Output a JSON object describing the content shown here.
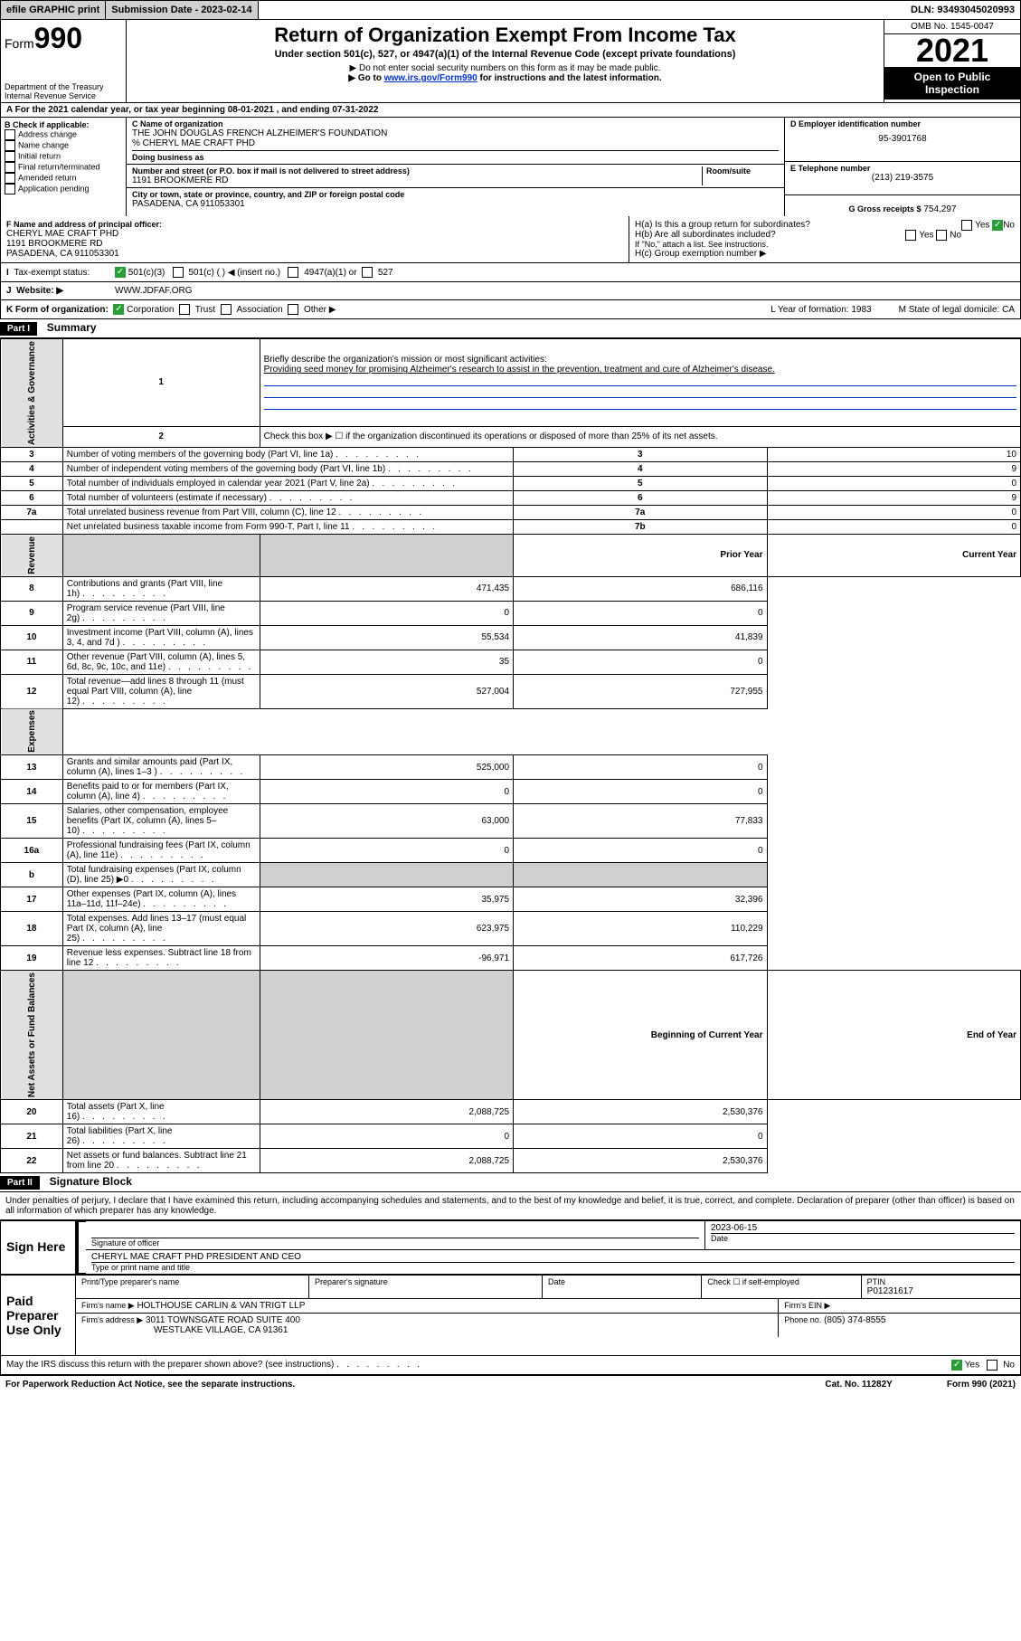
{
  "topbar": {
    "efile": "efile GRAPHIC print",
    "subdate_label": "Submission Date - 2023-02-14",
    "dln": "DLN: 93493045020993"
  },
  "header": {
    "form": "Form",
    "formno": "990",
    "dept": "Department of the Treasury",
    "irs": "Internal Revenue Service",
    "title": "Return of Organization Exempt From Income Tax",
    "subtitle": "Under section 501(c), 527, or 4947(a)(1) of the Internal Revenue Code (except private foundations)",
    "note1": "Do not enter social security numbers on this form as it may be made public.",
    "note2": "Go to ",
    "link": "www.irs.gov/Form990",
    "note2b": " for instructions and the latest information.",
    "omb": "OMB No. 1545-0047",
    "year": "2021",
    "openpub": "Open to Public Inspection"
  },
  "rowA": {
    "text1": "A For the 2021 calendar year, or tax year beginning ",
    "begin": "08-01-2021",
    "text2": " , and ending ",
    "end": "07-31-2022"
  },
  "colB": {
    "label": "B Check if applicable:",
    "items": [
      "Address change",
      "Name change",
      "Initial return",
      "Final return/terminated",
      "Amended return",
      "Application pending"
    ]
  },
  "colC": {
    "nameLabel": "C Name of organization",
    "name1": "THE JOHN DOUGLAS FRENCH ALZHEIMER'S FOUNDATION",
    "name2": "% CHERYL MAE CRAFT PHD",
    "dba": "Doing business as",
    "addrLabel": "Number and street (or P.O. box if mail is not delivered to street address)",
    "roomLabel": "Room/suite",
    "addr": "1191 BROOKMERE RD",
    "cityLabel": "City or town, state or province, country, and ZIP or foreign postal code",
    "city": "PASADENA, CA  911053301"
  },
  "colD": {
    "einLabel": "D Employer identification number",
    "ein": "95-3901768",
    "telLabel": "E Telephone number",
    "tel": "(213) 219-3575",
    "grossLabel": "G Gross receipts $",
    "gross": "754,297"
  },
  "rowF": {
    "flabel": "F Name and address of principal officer:",
    "fname": "CHERYL MAE CRAFT PHD",
    "faddr1": "1191 BROOKMERE RD",
    "faddr2": "PASADENA, CA  911053301",
    "ha": "H(a)  Is this a group return for subordinates?",
    "haYes": "Yes",
    "haNo": "No",
    "hb": "H(b)  Are all subordinates included?",
    "hbNote": "If \"No,\" attach a list. See instructions.",
    "hc": "H(c)  Group exemption number ▶"
  },
  "rowI": {
    "label": "Tax-exempt status:",
    "opts": [
      "501(c)(3)",
      "501(c) (  ) ◀ (insert no.)",
      "4947(a)(1) or",
      "527"
    ]
  },
  "rowJ": {
    "label": "Website: ▶",
    "val": "WWW.JDFAF.ORG"
  },
  "rowK": {
    "label": "K Form of organization:",
    "opts": [
      "Corporation",
      "Trust",
      "Association",
      "Other ▶"
    ],
    "yof": "L Year of formation: 1983",
    "state": "M State of legal domicile: CA"
  },
  "part1": {
    "bar": "Part I",
    "title": "Summary",
    "l1": "Briefly describe the organization's mission or most significant activities:",
    "l1val": "Providing seed money for promising Alzheimer's research to assist in the prevention, treatment and cure of Alzheimer's disease.",
    "l2": "Check this box ▶ ☐ if the organization discontinued its operations or disposed of more than 25% of its net assets.",
    "rows_ag": [
      {
        "n": "3",
        "d": "Number of voting members of the governing body (Part VI, line 1a)",
        "r": "3",
        "v": "10"
      },
      {
        "n": "4",
        "d": "Number of independent voting members of the governing body (Part VI, line 1b)",
        "r": "4",
        "v": "9"
      },
      {
        "n": "5",
        "d": "Total number of individuals employed in calendar year 2021 (Part V, line 2a)",
        "r": "5",
        "v": "0"
      },
      {
        "n": "6",
        "d": "Total number of volunteers (estimate if necessary)",
        "r": "6",
        "v": "9"
      },
      {
        "n": "7a",
        "d": "Total unrelated business revenue from Part VIII, column (C), line 12",
        "r": "7a",
        "v": "0"
      },
      {
        "n": "",
        "d": "Net unrelated business taxable income from Form 990-T, Part I, line 11",
        "r": "7b",
        "v": "0"
      }
    ],
    "hdr_prior": "Prior Year",
    "hdr_curr": "Current Year",
    "rows_rev": [
      {
        "n": "8",
        "d": "Contributions and grants (Part VIII, line 1h)",
        "p": "471,435",
        "c": "686,116"
      },
      {
        "n": "9",
        "d": "Program service revenue (Part VIII, line 2g)",
        "p": "0",
        "c": "0"
      },
      {
        "n": "10",
        "d": "Investment income (Part VIII, column (A), lines 3, 4, and 7d )",
        "p": "55,534",
        "c": "41,839"
      },
      {
        "n": "11",
        "d": "Other revenue (Part VIII, column (A), lines 5, 6d, 8c, 9c, 10c, and 11e)",
        "p": "35",
        "c": "0"
      },
      {
        "n": "12",
        "d": "Total revenue—add lines 8 through 11 (must equal Part VIII, column (A), line 12)",
        "p": "527,004",
        "c": "727,955"
      }
    ],
    "rows_exp": [
      {
        "n": "13",
        "d": "Grants and similar amounts paid (Part IX, column (A), lines 1–3 )",
        "p": "525,000",
        "c": "0"
      },
      {
        "n": "14",
        "d": "Benefits paid to or for members (Part IX, column (A), line 4)",
        "p": "0",
        "c": "0"
      },
      {
        "n": "15",
        "d": "Salaries, other compensation, employee benefits (Part IX, column (A), lines 5–10)",
        "p": "63,000",
        "c": "77,833"
      },
      {
        "n": "16a",
        "d": "Professional fundraising fees (Part IX, column (A), line 11e)",
        "p": "0",
        "c": "0"
      },
      {
        "n": "b",
        "d": "Total fundraising expenses (Part IX, column (D), line 25) ▶0",
        "p": "",
        "c": "",
        "shade": true
      },
      {
        "n": "17",
        "d": "Other expenses (Part IX, column (A), lines 11a–11d, 11f–24e)",
        "p": "35,975",
        "c": "32,396"
      },
      {
        "n": "18",
        "d": "Total expenses. Add lines 13–17 (must equal Part IX, column (A), line 25)",
        "p": "623,975",
        "c": "110,229"
      },
      {
        "n": "19",
        "d": "Revenue less expenses. Subtract line 18 from line 12",
        "p": "-96,971",
        "c": "617,726"
      }
    ],
    "hdr_beg": "Beginning of Current Year",
    "hdr_end": "End of Year",
    "rows_na": [
      {
        "n": "20",
        "d": "Total assets (Part X, line 16)",
        "p": "2,088,725",
        "c": "2,530,376"
      },
      {
        "n": "21",
        "d": "Total liabilities (Part X, line 26)",
        "p": "0",
        "c": "0"
      },
      {
        "n": "22",
        "d": "Net assets or fund balances. Subtract line 21 from line 20",
        "p": "2,088,725",
        "c": "2,530,376"
      }
    ],
    "side_ag": "Activities & Governance",
    "side_rev": "Revenue",
    "side_exp": "Expenses",
    "side_na": "Net Assets or Fund Balances"
  },
  "part2": {
    "bar": "Part II",
    "title": "Signature Block",
    "decl": "Under penalties of perjury, I declare that I have examined this return, including accompanying schedules and statements, and to the best of my knowledge and belief, it is true, correct, and complete. Declaration of preparer (other than officer) is based on all information of which preparer has any knowledge.",
    "sign_here": "Sign Here",
    "sig_of_officer": "Signature of officer",
    "sig_date": "2023-06-15",
    "date_lbl": "Date",
    "officer_name": "CHERYL MAE CRAFT PHD  PRESIDENT AND CEO",
    "type_name": "Type or print name and title",
    "paid": "Paid Preparer Use Only",
    "prep_name_lbl": "Print/Type preparer's name",
    "prep_sig_lbl": "Preparer's signature",
    "check_self": "Check ☐ if self-employed",
    "ptin_lbl": "PTIN",
    "ptin": "P01231617",
    "firm_name_lbl": "Firm's name    ▶",
    "firm_name": "HOLTHOUSE CARLIN & VAN TRIGT LLP",
    "firm_ein_lbl": "Firm's EIN ▶",
    "firm_addr_lbl": "Firm's address ▶",
    "firm_addr1": "3011 TOWNSGATE ROAD SUITE 400",
    "firm_addr2": "WESTLAKE VILLAGE, CA  91361",
    "phone_lbl": "Phone no.",
    "phone": "(805) 374-8555",
    "discuss": "May the IRS discuss this return with the preparer shown above? (see instructions)",
    "yes": "Yes",
    "no": "No"
  },
  "footer": {
    "left": "For Paperwork Reduction Act Notice, see the separate instructions.",
    "mid": "Cat. No. 11282Y",
    "right": "Form 990 (2021)"
  }
}
